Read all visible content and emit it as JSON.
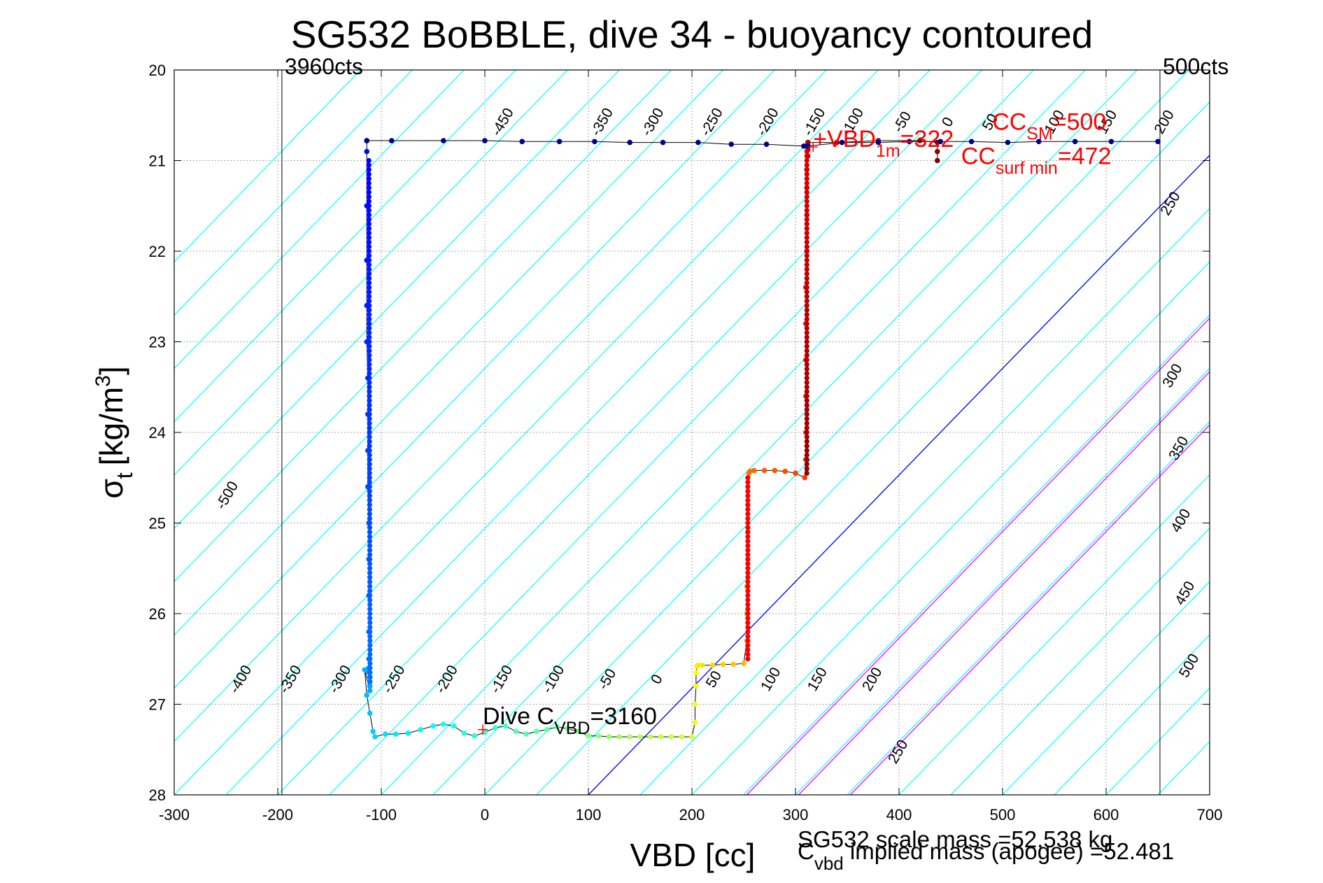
{
  "chart_data": {
    "type": "scatter",
    "title": "SG532 BoBBLE, dive 34 - buoyancy contoured",
    "xlabel": "VBD [cc]",
    "ylabel_main": "σ",
    "ylabel_sub": "t",
    "ylabel_unit": "[kg/m",
    "ylabel_sup": "3",
    "ylabel_close": "]",
    "xlim": [
      -300,
      700
    ],
    "ylim": [
      28,
      20
    ],
    "y_inverted": true,
    "grid": true,
    "x_ticks": [
      -300,
      -200,
      -100,
      0,
      100,
      200,
      300,
      400,
      500,
      600,
      700
    ],
    "x_tick_labels": [
      "-300",
      "-200",
      "-100",
      "0",
      "100",
      "200",
      "300",
      "400",
      "500",
      "600",
      "700"
    ],
    "y_ticks": [
      20,
      21,
      22,
      23,
      24,
      25,
      26,
      27,
      28
    ],
    "y_tick_labels": [
      "20",
      "21",
      "22",
      "23",
      "24",
      "25",
      "26",
      "27",
      "28"
    ],
    "vertical_markers": [
      {
        "x": -196,
        "label": "3960cts"
      },
      {
        "x": 652,
        "label": "500cts"
      }
    ],
    "buoyancy_contours": {
      "slope_cc_per_kgm3": -85,
      "values": [
        -500,
        -450,
        -400,
        -350,
        -300,
        -250,
        -200,
        -150,
        -100,
        -50,
        0,
        50,
        100,
        150,
        200,
        250,
        300,
        350,
        400,
        450,
        500
      ],
      "label_values": [
        "-500",
        "-400",
        "-350",
        "-300",
        "-250",
        "-200",
        "-150",
        "-100",
        "-50",
        "0",
        "50",
        "100",
        "150",
        "200",
        "250",
        "300",
        "350",
        "400",
        "450",
        "500",
        "-450",
        "-200",
        "-150",
        "-100",
        "-50",
        "0",
        "50",
        "100",
        "150",
        "200",
        "250",
        "-350",
        "-300",
        "-250"
      ],
      "highlight_zero_color": "#0000ff",
      "highlight_positive": [
        150,
        200,
        250
      ],
      "highlight_positive_color": "#ff00ff",
      "contour_color": "#00ffff"
    },
    "dive_series": {
      "name": "",
      "x": [
        -114,
        -114,
        -114,
        -114,
        -114,
        -114,
        -113,
        -113,
        -113,
        -113,
        -112,
        -112,
        -112,
        -112,
        -112,
        -112,
        -112,
        -111,
        -111,
        -111,
        -111,
        -116,
        -114,
        -111,
        -108,
        -106,
        -96,
        -86,
        -74,
        -62,
        -50,
        -40,
        -30,
        -20,
        -10,
        0,
        10,
        20,
        30,
        40,
        50,
        60,
        70,
        80,
        90,
        100,
        110,
        120,
        130,
        140,
        150,
        160,
        170,
        180,
        190,
        200,
        203,
        203,
        204,
        204,
        205,
        206,
        210,
        220,
        230,
        240,
        250,
        253,
        253,
        253,
        254,
        254,
        254,
        254,
        255,
        256,
        260,
        270,
        280,
        290,
        300,
        309,
        310,
        310,
        310,
        310,
        310,
        310,
        311,
        311,
        311,
        311,
        312,
        312,
        312,
        312,
        312,
        340,
        380,
        420,
        437,
        437,
        437
      ],
      "y": [
        20.78,
        20.9,
        21.5,
        22.1,
        22.6,
        23.0,
        23.4,
        23.8,
        24.2,
        24.6,
        25.0,
        25.4,
        25.8,
        26.2,
        26.5,
        26.6,
        26.65,
        26.7,
        26.75,
        26.8,
        26.85,
        26.62,
        26.9,
        27.1,
        27.3,
        27.36,
        27.33,
        27.33,
        27.32,
        27.28,
        27.24,
        27.22,
        27.24,
        27.32,
        27.35,
        27.31,
        27.26,
        27.24,
        27.3,
        27.33,
        27.3,
        27.28,
        27.25,
        27.27,
        27.3,
        27.35,
        27.35,
        27.36,
        27.36,
        27.36,
        27.36,
        27.36,
        27.36,
        27.36,
        27.36,
        27.36,
        27.2,
        27.0,
        26.8,
        26.65,
        26.58,
        26.57,
        26.57,
        26.57,
        26.56,
        26.56,
        26.55,
        26.3,
        26.0,
        25.7,
        25.4,
        25.1,
        24.8,
        24.5,
        24.45,
        24.43,
        24.42,
        24.42,
        24.42,
        24.43,
        24.45,
        24.5,
        24.3,
        24.0,
        23.6,
        23.2,
        22.8,
        22.4,
        22.0,
        21.6,
        21.3,
        21.1,
        20.95,
        20.88,
        20.83,
        20.8,
        20.8,
        20.8,
        20.78,
        20.78,
        20.8,
        20.9,
        21.0
      ],
      "colorscale": "jet"
    },
    "surface_series": {
      "x": [
        -114,
        -90,
        -40,
        0,
        36,
        72,
        106,
        140,
        172,
        206,
        238,
        272,
        308,
        312,
        345,
        380,
        410,
        440,
        470,
        505,
        535,
        570,
        605,
        650
      ],
      "y": [
        20.78,
        20.78,
        20.78,
        20.78,
        20.79,
        20.79,
        20.79,
        20.8,
        20.8,
        20.8,
        20.82,
        20.82,
        20.84,
        20.84,
        20.8,
        20.8,
        20.79,
        20.79,
        20.79,
        20.8,
        20.79,
        20.79,
        20.79,
        20.79
      ],
      "color": "#00008b"
    },
    "annotations": [
      {
        "id": "dive-cvbd",
        "x": -2,
        "y": 27.22,
        "main": "Dive C",
        "sub": "VBD",
        "tail": "=3160",
        "color": "#000000"
      },
      {
        "id": "vbd-1m",
        "x": 317,
        "y": 20.85,
        "main": "+VBD",
        "sub": "1m",
        "tail": "=322",
        "color": "#ff0000"
      },
      {
        "id": "cc-sm",
        "x": 490,
        "y": 20.66,
        "main": "CC",
        "sub": "SM",
        "tail": "=500",
        "color": "#ff0000"
      },
      {
        "id": "cc-surf",
        "x": 460,
        "y": 21.04,
        "main": "CC",
        "sub": "surf min",
        "tail": "=472",
        "color": "#ff0000"
      }
    ]
  },
  "footer": {
    "scale_mass": "SG532 scale mass =52.538 kg",
    "implied_main": "C",
    "implied_sub": "vbd",
    "implied_tail": " implied mass (apogee) =52.481"
  }
}
